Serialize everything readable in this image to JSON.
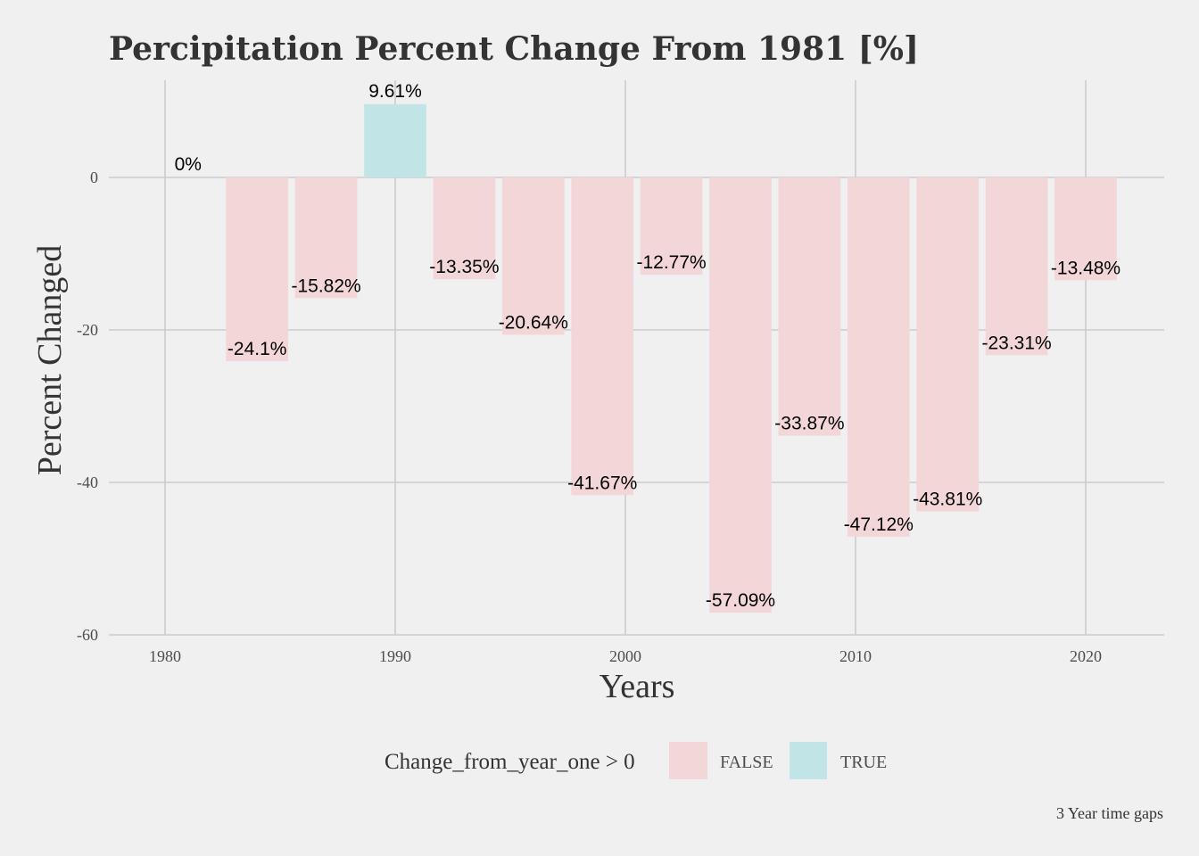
{
  "chart_data": {
    "type": "bar",
    "title": "Percipitation Percent Change From 1981 [%]",
    "xlabel": "Years",
    "ylabel": "Percent Changed",
    "caption": "3 Year time gaps",
    "x": [
      1981,
      1984,
      1987,
      1990,
      1993,
      1996,
      1999,
      2002,
      2005,
      2008,
      2011,
      2014,
      2017,
      2020
    ],
    "values": [
      0,
      -24.1,
      -15.82,
      9.61,
      -13.35,
      -20.64,
      -41.67,
      -12.77,
      -57.09,
      -33.87,
      -47.12,
      -43.81,
      -23.31,
      -13.48
    ],
    "labels": [
      "0%",
      "-24.1%",
      "-15.82%",
      "9.61%",
      "-13.35%",
      "-20.64%",
      "-41.67%",
      "-12.77%",
      "-57.09%",
      "-33.87%",
      "-47.12%",
      "-43.81%",
      "-23.31%",
      "-13.48%"
    ],
    "xlim": [
      1977.5,
      2023.5
    ],
    "ylim": [
      -60,
      12
    ],
    "x_ticks": [
      1980,
      1990,
      2000,
      2010,
      2020
    ],
    "x_tick_labels": [
      "1980",
      "1990",
      "2000",
      "2010",
      "2020"
    ],
    "y_ticks": [
      0,
      -20,
      -40,
      -60
    ],
    "y_tick_labels": [
      "0",
      "-20",
      "-40",
      "-60"
    ],
    "grid": true,
    "legend": {
      "title": "Change_from_year_one > 0",
      "position": "bottom",
      "items": [
        {
          "label": "FALSE",
          "color": "#f3d7d8"
        },
        {
          "label": "TRUE",
          "color": "#c1e4e6"
        }
      ]
    },
    "colors": {
      "false": "#f3d7d8",
      "true": "#c1e4e6"
    }
  }
}
